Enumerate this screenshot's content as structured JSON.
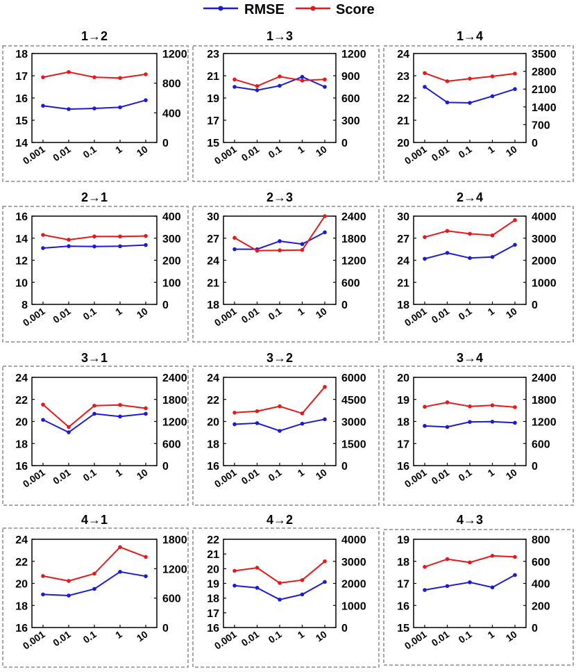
{
  "legend": {
    "rmse_label": "RMSE",
    "score_label": "Score",
    "rmse_color": "#1a1adb",
    "score_color": "#e81818"
  },
  "chart_data": [
    {
      "type": "line",
      "title": "1→2",
      "categories": [
        "0.001",
        "0.01",
        "0.1",
        "1",
        "10"
      ],
      "series": [
        {
          "name": "RMSE",
          "axis": "left",
          "values": [
            15.65,
            15.5,
            15.53,
            15.58,
            15.9
          ]
        },
        {
          "name": "Score",
          "axis": "right",
          "values": [
            880,
            950,
            880,
            870,
            920
          ]
        }
      ],
      "ylim_left": [
        14,
        18
      ],
      "yticks_left": [
        "14",
        "15",
        "16",
        "17",
        "18"
      ],
      "ylim_right": [
        0,
        1200
      ],
      "yticks_right": [
        "0",
        "400",
        "800",
        "1200"
      ]
    },
    {
      "type": "line",
      "title": "1→3",
      "categories": [
        "0.001",
        "0.01",
        "0.1",
        "1",
        "10"
      ],
      "series": [
        {
          "name": "RMSE",
          "axis": "left",
          "values": [
            20.0,
            19.7,
            20.1,
            20.9,
            20.0
          ]
        },
        {
          "name": "Score",
          "axis": "right",
          "values": [
            850,
            760,
            890,
            835,
            850
          ]
        }
      ],
      "ylim_left": [
        15,
        23
      ],
      "yticks_left": [
        "15",
        "17",
        "19",
        "21",
        "23"
      ],
      "ylim_right": [
        0,
        1200
      ],
      "yticks_right": [
        "0",
        "300",
        "600",
        "900",
        "1200"
      ]
    },
    {
      "type": "line",
      "title": "1→4",
      "categories": [
        "0.001",
        "0.01",
        "0.1",
        "1",
        "10"
      ],
      "series": [
        {
          "name": "RMSE",
          "axis": "left",
          "values": [
            22.5,
            21.8,
            21.78,
            22.08,
            22.4
          ]
        },
        {
          "name": "Score",
          "axis": "right",
          "values": [
            2730,
            2410,
            2510,
            2600,
            2710
          ]
        }
      ],
      "ylim_left": [
        20,
        24
      ],
      "yticks_left": [
        "20",
        "21",
        "22",
        "23",
        "24"
      ],
      "ylim_right": [
        0,
        3500
      ],
      "yticks_right": [
        "0",
        "700",
        "1400",
        "2100",
        "2800",
        "3500"
      ]
    },
    {
      "type": "line",
      "title": "2→1",
      "categories": [
        "0.001",
        "0.01",
        "0.1",
        "1",
        "10"
      ],
      "series": [
        {
          "name": "RMSE",
          "axis": "left",
          "values": [
            13.1,
            13.28,
            13.25,
            13.27,
            13.38
          ]
        },
        {
          "name": "Score",
          "axis": "right",
          "values": [
            315,
            293,
            308,
            308,
            310
          ]
        }
      ],
      "ylim_left": [
        8,
        16
      ],
      "yticks_left": [
        "8",
        "10",
        "12",
        "14",
        "16"
      ],
      "ylim_right": [
        0,
        400
      ],
      "yticks_right": [
        "0",
        "100",
        "200",
        "300",
        "400"
      ]
    },
    {
      "type": "line",
      "title": "2→3",
      "categories": [
        "0.001",
        "0.01",
        "0.1",
        "1",
        "10"
      ],
      "series": [
        {
          "name": "RMSE",
          "axis": "left",
          "values": [
            25.5,
            25.5,
            26.6,
            26.2,
            27.8
          ]
        },
        {
          "name": "Score",
          "axis": "right",
          "values": [
            1810,
            1460,
            1470,
            1480,
            2400
          ]
        }
      ],
      "ylim_left": [
        18,
        30
      ],
      "yticks_left": [
        "18",
        "21",
        "24",
        "27",
        "30"
      ],
      "ylim_right": [
        0,
        2400
      ],
      "yticks_right": [
        "0",
        "600",
        "1200",
        "1800",
        "2400"
      ]
    },
    {
      "type": "line",
      "title": "2→4",
      "categories": [
        "0.001",
        "0.01",
        "0.1",
        "1",
        "10"
      ],
      "series": [
        {
          "name": "RMSE",
          "axis": "left",
          "values": [
            24.2,
            25.0,
            24.3,
            24.45,
            26.1
          ]
        },
        {
          "name": "Score",
          "axis": "right",
          "values": [
            3050,
            3330,
            3200,
            3130,
            3820
          ]
        }
      ],
      "ylim_left": [
        18,
        30
      ],
      "yticks_left": [
        "18",
        "21",
        "24",
        "27",
        "30"
      ],
      "ylim_right": [
        0,
        4000
      ],
      "yticks_right": [
        "0",
        "1000",
        "2000",
        "3000",
        "4000"
      ]
    },
    {
      "type": "line",
      "title": "3→1",
      "categories": [
        "0.001",
        "0.01",
        "0.1",
        "1",
        "10"
      ],
      "series": [
        {
          "name": "RMSE",
          "axis": "left",
          "values": [
            20.15,
            19.02,
            20.7,
            20.45,
            20.7
          ]
        },
        {
          "name": "Score",
          "axis": "right",
          "values": [
            1660,
            1050,
            1630,
            1650,
            1560
          ]
        }
      ],
      "ylim_left": [
        16,
        24
      ],
      "yticks_left": [
        "16",
        "18",
        "20",
        "22",
        "24"
      ],
      "ylim_right": [
        0,
        2400
      ],
      "yticks_right": [
        "0",
        "600",
        "1200",
        "1800",
        "2400"
      ]
    },
    {
      "type": "line",
      "title": "3→2",
      "categories": [
        "0.001",
        "0.01",
        "0.1",
        "1",
        "10"
      ],
      "series": [
        {
          "name": "RMSE",
          "axis": "left",
          "values": [
            19.75,
            19.85,
            19.15,
            19.8,
            20.2
          ]
        },
        {
          "name": "Score",
          "axis": "right",
          "values": [
            3600,
            3700,
            4030,
            3550,
            5350
          ]
        }
      ],
      "ylim_left": [
        16,
        24
      ],
      "yticks_left": [
        "16",
        "18",
        "20",
        "22",
        "24"
      ],
      "ylim_right": [
        0,
        6000
      ],
      "yticks_right": [
        "0",
        "1500",
        "3000",
        "4500",
        "6000"
      ]
    },
    {
      "type": "line",
      "title": "3→4",
      "categories": [
        "0.001",
        "0.01",
        "0.1",
        "1",
        "10"
      ],
      "series": [
        {
          "name": "RMSE",
          "axis": "left",
          "values": [
            17.8,
            17.75,
            17.98,
            17.99,
            17.94
          ]
        },
        {
          "name": "Score",
          "axis": "right",
          "values": [
            1600,
            1720,
            1610,
            1640,
            1590
          ]
        }
      ],
      "ylim_left": [
        16,
        20
      ],
      "yticks_left": [
        "16",
        "17",
        "18",
        "19",
        "20"
      ],
      "ylim_right": [
        0,
        2400
      ],
      "yticks_right": [
        "0",
        "600",
        "1200",
        "1800",
        "2400"
      ]
    },
    {
      "type": "line",
      "title": "4→1",
      "categories": [
        "0.001",
        "0.01",
        "0.1",
        "1",
        "10"
      ],
      "series": [
        {
          "name": "RMSE",
          "axis": "left",
          "values": [
            19.0,
            18.9,
            19.5,
            21.05,
            20.65
          ]
        },
        {
          "name": "Score",
          "axis": "right",
          "values": [
            1050,
            950,
            1100,
            1640,
            1440
          ]
        }
      ],
      "ylim_left": [
        16,
        24
      ],
      "yticks_left": [
        "16",
        "18",
        "20",
        "22",
        "24"
      ],
      "ylim_right": [
        0,
        1800
      ],
      "yticks_right": [
        "0",
        "600",
        "1200",
        "1800"
      ]
    },
    {
      "type": "line",
      "title": "4→2",
      "categories": [
        "0.001",
        "0.01",
        "0.1",
        "1",
        "10"
      ],
      "series": [
        {
          "name": "RMSE",
          "axis": "left",
          "values": [
            18.85,
            18.7,
            17.9,
            18.25,
            19.1
          ]
        },
        {
          "name": "Score",
          "axis": "right",
          "values": [
            2570,
            2710,
            2020,
            2150,
            3000
          ]
        }
      ],
      "ylim_left": [
        16,
        22
      ],
      "yticks_left": [
        "16",
        "17",
        "18",
        "19",
        "20",
        "21",
        "22"
      ],
      "ylim_right": [
        0,
        4000
      ],
      "yticks_right": [
        "0",
        "1000",
        "2000",
        "3000",
        "4000"
      ]
    },
    {
      "type": "line",
      "title": "4→3",
      "categories": [
        "0.001",
        "0.01",
        "0.1",
        "1",
        "10"
      ],
      "series": [
        {
          "name": "RMSE",
          "axis": "left",
          "values": [
            16.7,
            16.88,
            17.05,
            16.82,
            17.38
          ]
        },
        {
          "name": "Score",
          "axis": "right",
          "values": [
            550,
            620,
            590,
            650,
            640
          ]
        }
      ],
      "ylim_left": [
        15,
        19
      ],
      "yticks_left": [
        "15",
        "16",
        "17",
        "18",
        "19"
      ],
      "ylim_right": [
        0,
        800
      ],
      "yticks_right": [
        "0",
        "200",
        "400",
        "600",
        "800"
      ]
    }
  ]
}
